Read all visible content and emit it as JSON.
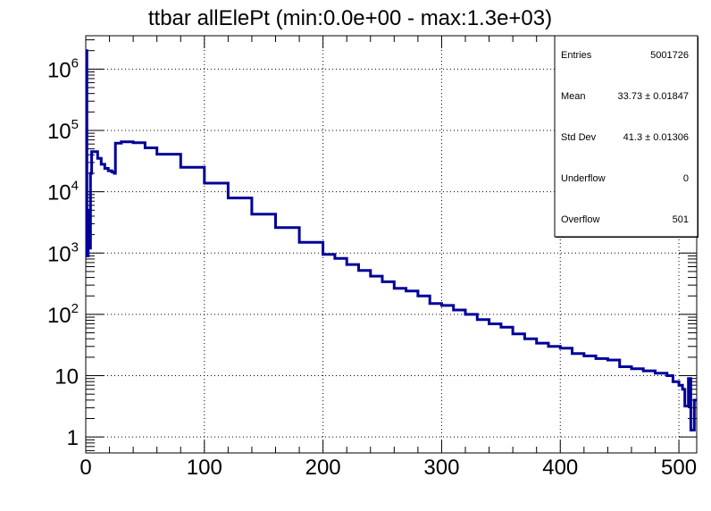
{
  "chart_data": {
    "type": "line",
    "title": "ttbar allElePt (min:0.0e+00 - max:1.3e+03)",
    "xlabel": "",
    "ylabel": "",
    "xlim": [
      0,
      515
    ],
    "ylim": [
      0.55,
      3500000
    ],
    "y_scale": "log",
    "grid": true,
    "line_color": "#000099",
    "x_ticks": [
      {
        "value": 0,
        "label": "0"
      },
      {
        "value": 100,
        "label": "100"
      },
      {
        "value": 200,
        "label": "200"
      },
      {
        "value": 300,
        "label": "300"
      },
      {
        "value": 400,
        "label": "400"
      },
      {
        "value": 500,
        "label": "500"
      }
    ],
    "y_ticks": [
      {
        "value": 1,
        "base": "1",
        "exp": ""
      },
      {
        "value": 10,
        "base": "10",
        "exp": ""
      },
      {
        "value": 100,
        "base": "10",
        "exp": "2"
      },
      {
        "value": 1000,
        "base": "10",
        "exp": "3"
      },
      {
        "value": 10000,
        "base": "10",
        "exp": "4"
      },
      {
        "value": 100000,
        "base": "10",
        "exp": "5"
      },
      {
        "value": 1000000,
        "base": "10",
        "exp": "6"
      }
    ],
    "series": [
      {
        "x": [
          0,
          1,
          2,
          3,
          4,
          5,
          7,
          10,
          13,
          16,
          19,
          22,
          24,
          25,
          30,
          40,
          50,
          60,
          80,
          100,
          120,
          140,
          160,
          180,
          200,
          210,
          220,
          230,
          240,
          250,
          260,
          270,
          280,
          290,
          300,
          310,
          320,
          330,
          340,
          350,
          360,
          370,
          380,
          390,
          400,
          410,
          420,
          430,
          440,
          450,
          460,
          470,
          480,
          490,
          495,
          500,
          503,
          505,
          508,
          510,
          513
        ],
        "y": [
          2000000,
          900,
          5000,
          1200,
          20000,
          45000,
          45000,
          35000,
          28000,
          24000,
          22000,
          21000,
          20000,
          62000,
          65000,
          63000,
          52000,
          41000,
          25000,
          13800,
          7900,
          4300,
          2600,
          1500,
          950,
          820,
          650,
          520,
          420,
          340,
          265,
          240,
          200,
          150,
          140,
          118,
          100,
          82,
          70,
          62,
          48,
          40,
          34,
          30,
          28,
          23,
          21,
          19,
          18,
          14,
          13,
          12,
          11,
          10,
          8,
          7,
          6,
          3.2,
          9,
          1.3,
          4
        ]
      }
    ],
    "stats": [
      {
        "label": "Entries",
        "value": "5001726"
      },
      {
        "label": "Mean",
        "value": "33.73 ± 0.01847"
      },
      {
        "label": "Std Dev",
        "value": "41.3 ± 0.01306"
      },
      {
        "label": "Underflow",
        "value": "0"
      },
      {
        "label": "Overflow",
        "value": "501"
      }
    ]
  }
}
